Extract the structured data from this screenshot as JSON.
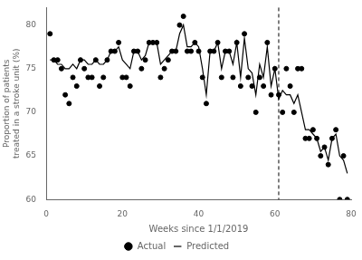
{
  "chart_data": {
    "type": "scatter",
    "x_label": "Weeks since 1/1/2019",
    "y_label": "Proportion of patients treated in a stroke unit (%)",
    "x": [
      1,
      2,
      3,
      4,
      5,
      6,
      7,
      8,
      9,
      10,
      11,
      12,
      13,
      14,
      15,
      16,
      17,
      18,
      19,
      20,
      21,
      22,
      23,
      24,
      25,
      26,
      27,
      28,
      29,
      30,
      31,
      32,
      33,
      34,
      35,
      36,
      37,
      38,
      39,
      40,
      41,
      42,
      43,
      44,
      45,
      46,
      47,
      48,
      49,
      50,
      51,
      52,
      53,
      54,
      55,
      56,
      57,
      58,
      59,
      60,
      61,
      62,
      63,
      64,
      65,
      66,
      67,
      68,
      69,
      70,
      71,
      72,
      73,
      74,
      75,
      76,
      77,
      78,
      79
    ],
    "series": [
      {
        "name": "Actual",
        "type": "scatter",
        "marker": "circle",
        "color": "#000000",
        "values": [
          79,
          76,
          76,
          75,
          72,
          71,
          74,
          73,
          76,
          75,
          74,
          74,
          76,
          73,
          74,
          76,
          77,
          77,
          78,
          74,
          74,
          73,
          77,
          77,
          75,
          76,
          78,
          78,
          78,
          74,
          75,
          76,
          77,
          77,
          80,
          81,
          77,
          77,
          78,
          77,
          74,
          71,
          77,
          77,
          78,
          74,
          77,
          77,
          74,
          78,
          73,
          79,
          74,
          73,
          70,
          74,
          73,
          78,
          72,
          75,
          72,
          70,
          75,
          73,
          70,
          75,
          75,
          67,
          67,
          68,
          67,
          65,
          66,
          64,
          67,
          68,
          60,
          65,
          60
        ]
      },
      {
        "name": "Predicted",
        "type": "line",
        "line_style": "solid",
        "color": "#000000",
        "values": [
          76.0,
          76.0,
          75.5,
          75.5,
          75.0,
          75.0,
          75.5,
          75.0,
          76.0,
          76.0,
          75.5,
          75.5,
          76.0,
          75.5,
          75.5,
          76.0,
          77.0,
          77.0,
          77.5,
          76.0,
          75.5,
          75.0,
          77.0,
          77.0,
          76.0,
          76.5,
          78.0,
          78.0,
          78.0,
          75.5,
          76.0,
          76.5,
          77.0,
          77.0,
          79.0,
          80.0,
          77.5,
          77.5,
          78.0,
          77.5,
          75.0,
          72.0,
          77.0,
          77.0,
          78.0,
          75.0,
          77.0,
          77.0,
          75.5,
          78.0,
          74.0,
          78.5,
          75.0,
          74.5,
          72.0,
          75.5,
          74.0,
          77.5,
          73.0,
          75.0,
          71.5,
          72.5,
          72.0,
          72.0,
          71.0,
          72.0,
          70.0,
          68.0,
          68.0,
          67.5,
          67.0,
          65.5,
          66.0,
          64.5,
          67.0,
          67.5,
          65.0,
          64.5,
          63.0
        ]
      }
    ],
    "vline_x": 61,
    "xlim": [
      0,
      80
    ],
    "xticks": [
      0,
      20,
      40,
      60,
      80
    ],
    "ylim": [
      60,
      82
    ],
    "yticks": [
      60,
      65,
      70,
      75,
      80
    ],
    "grid": false,
    "legend": "bottom"
  }
}
